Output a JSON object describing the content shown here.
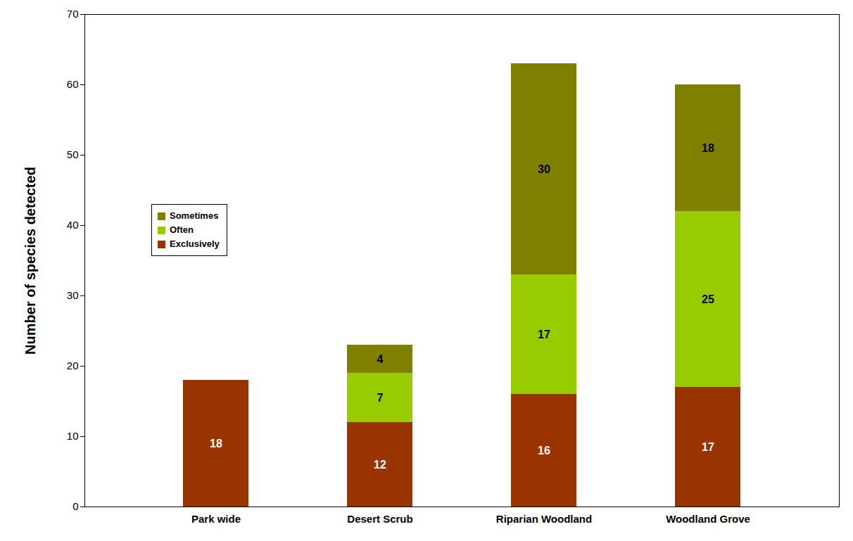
{
  "chart_data": {
    "type": "bar",
    "stacked": true,
    "data_labels": true,
    "legend": "upper left",
    "y_label": "Number of species detected",
    "categories": [
      "Park wide",
      "Desert Scrub",
      "Riparian Woodland",
      "Woodland Grove"
    ],
    "series": [
      {
        "name": "Exclusively",
        "color": "#993300",
        "values": [
          18,
          12,
          16,
          17
        ]
      },
      {
        "name": "Often",
        "color": "#99cc00",
        "values": [
          null,
          7,
          17,
          25
        ]
      },
      {
        "name": "Sometimes",
        "color": "#808000",
        "values": [
          null,
          4,
          30,
          18
        ]
      }
    ],
    "ylim": [
      0,
      70
    ],
    "yticks": [
      0,
      10,
      20,
      30,
      40,
      50,
      60,
      70
    ]
  }
}
